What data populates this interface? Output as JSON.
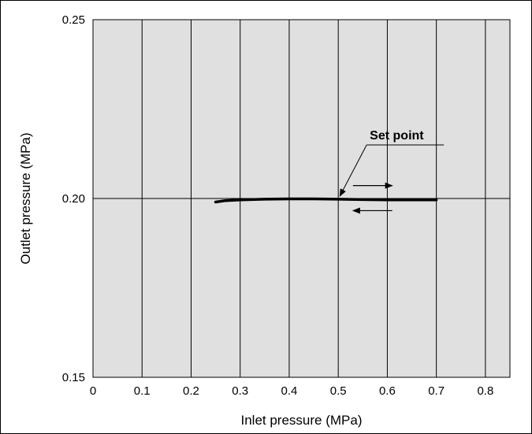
{
  "chart_data": {
    "type": "line",
    "xlabel": "Inlet pressure (MPa)",
    "ylabel": "Outlet pressure  (MPa)",
    "xlim": [
      0,
      0.85
    ],
    "ylim": [
      0.15,
      0.25
    ],
    "x_ticks": [
      0,
      0.1,
      0.2,
      0.3,
      0.4,
      0.5,
      0.6,
      0.7,
      0.8
    ],
    "x_tick_labels": [
      "0",
      "0.1",
      "0.2",
      "0.3",
      "0.4",
      "0.5",
      "0.6",
      "0.7",
      "0.8"
    ],
    "y_ticks": [
      0.15,
      0.2,
      0.25
    ],
    "y_tick_labels": [
      "0.15",
      "0.20",
      "0.25"
    ],
    "grid": {
      "vertical": true,
      "horizontal_at": [
        0.2
      ]
    },
    "plot_background": "#e0e0e0",
    "line_color": "#000000",
    "series": [
      {
        "points": [
          {
            "x": 0.25,
            "y": 0.199
          },
          {
            "x": 0.27,
            "y": 0.1994
          },
          {
            "x": 0.3,
            "y": 0.1996
          },
          {
            "x": 0.35,
            "y": 0.1998
          },
          {
            "x": 0.4,
            "y": 0.1999
          },
          {
            "x": 0.45,
            "y": 0.1999
          },
          {
            "x": 0.5,
            "y": 0.1998
          },
          {
            "x": 0.55,
            "y": 0.1997
          },
          {
            "x": 0.6,
            "y": 0.1996
          },
          {
            "x": 0.65,
            "y": 0.1996
          },
          {
            "x": 0.7,
            "y": 0.1996
          }
        ]
      }
    ],
    "annotations": [
      {
        "text": "Set point",
        "target": {
          "x": 0.5,
          "y": 0.2
        }
      }
    ],
    "direction_arrows": [
      {
        "direction": "right",
        "from_x": 0.53,
        "to_x": 0.61,
        "y": 0.2036
      },
      {
        "direction": "left",
        "from_x": 0.61,
        "to_x": 0.53,
        "y": 0.1966
      }
    ]
  }
}
